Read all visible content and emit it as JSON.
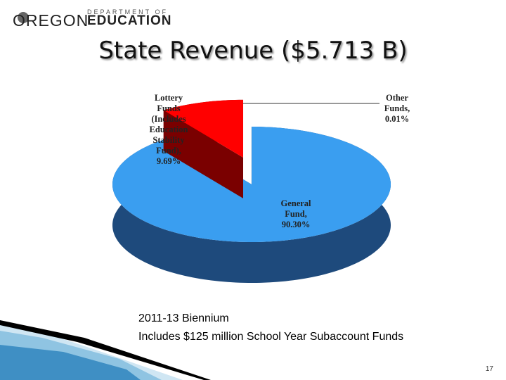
{
  "logo": {
    "name": "OREGON",
    "department": "DEPARTMENT OF",
    "agency": "EDUCATION"
  },
  "chart_data": {
    "type": "pie3d",
    "title": "State Revenue ($5.713 B)",
    "categories": [
      "Other Funds,",
      "General Fund,",
      "Lottery Funds (Includes Education Stability Fund),"
    ],
    "values": [
      0.01,
      90.3,
      9.69
    ],
    "value_labels": [
      "0.01%",
      "90.30%",
      "9.69%"
    ],
    "colors": [
      "#ffffff",
      "#3a9ef0",
      "#ff0000"
    ],
    "side_colors": [
      "#dddddd",
      "#1e4a7c",
      "#7a0000"
    ]
  },
  "notes": [
    "2011-13 Biennium",
    "Includes $125 million School Year Subaccount Funds"
  ],
  "page_number": "17"
}
